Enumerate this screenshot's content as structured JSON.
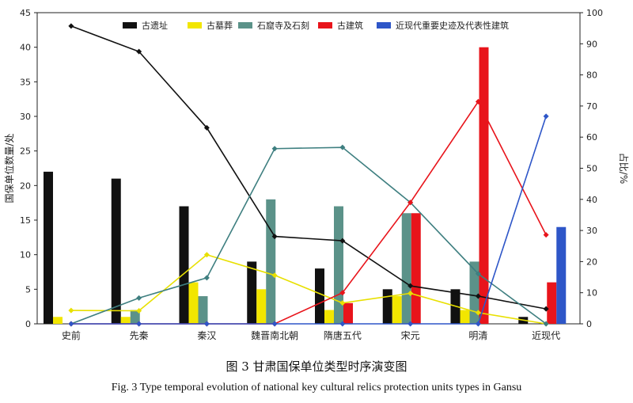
{
  "caption": {
    "cn": "图 3   甘肃国保单位类型时序演变图",
    "en": "Fig. 3    Type temporal evolution of national key cultural relics protection units types in Gansu"
  },
  "chart_data": {
    "type": "bar",
    "categories": [
      "史前",
      "先秦",
      "秦汉",
      "魏晋南北朝",
      "隋唐五代",
      "宋元",
      "明清",
      "近现代"
    ],
    "ylabel": "国保单位数量/处",
    "y2label": "占比/%",
    "ylim": [
      0,
      45
    ],
    "y2lim": [
      0,
      100
    ],
    "yticks": [
      0,
      5,
      10,
      15,
      20,
      25,
      30,
      35,
      40,
      45
    ],
    "y2ticks": [
      0,
      10,
      20,
      30,
      40,
      50,
      60,
      70,
      80,
      90,
      100
    ],
    "legend_position": "top",
    "grid": false,
    "series": [
      {
        "name": "古遗址",
        "color": "#111111",
        "values": [
          22,
          21,
          17,
          9,
          8,
          5,
          5,
          1
        ]
      },
      {
        "name": "古墓葬",
        "color": "#f2e600",
        "values": [
          1,
          1,
          6,
          5,
          2,
          4,
          2,
          0
        ]
      },
      {
        "name": "石窟寺及石刻",
        "color": "#5b9289",
        "values": [
          0,
          2,
          4,
          18,
          17,
          16,
          9,
          0
        ]
      },
      {
        "name": "古建筑",
        "color": "#e8141b",
        "values": [
          0,
          0,
          0,
          0,
          3,
          16,
          40,
          6
        ]
      },
      {
        "name": "近现代重要史迹及代表性建筑",
        "color": "#2e56c8",
        "values": [
          0,
          0,
          0,
          0,
          0,
          0,
          0,
          14
        ]
      }
    ],
    "percent_lines": [
      {
        "series": "古遗址",
        "color": "#111111",
        "values": [
          95.7,
          87.5,
          63.0,
          28.1,
          26.7,
          12.2,
          8.9,
          4.8
        ]
      },
      {
        "series": "古墓葬",
        "color": "#e8e000",
        "values": [
          4.3,
          4.2,
          22.2,
          15.6,
          6.7,
          9.8,
          3.6,
          0
        ]
      },
      {
        "series": "石窟寺及石刻",
        "color": "#3e7f80",
        "values": [
          0,
          8.3,
          14.8,
          56.3,
          56.7,
          39.0,
          16.1,
          0
        ]
      },
      {
        "series": "古建筑",
        "color": "#e8141b",
        "values": [
          0,
          0,
          0,
          0,
          10.0,
          39.0,
          71.4,
          28.6
        ]
      },
      {
        "series": "近现代重要史迹及代表性建筑",
        "color": "#2e56c8",
        "values": [
          0,
          0,
          0,
          0,
          0,
          0,
          0,
          66.7
        ]
      }
    ]
  }
}
